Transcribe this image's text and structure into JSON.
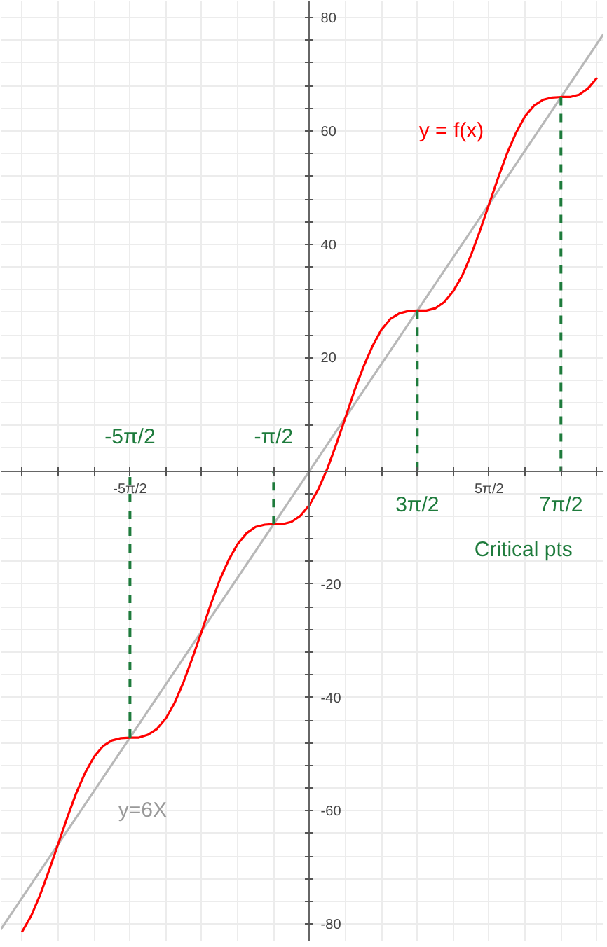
{
  "chart_data": {
    "type": "line",
    "xlim": [
      -13.5,
      12.85
    ],
    "ylim": [
      -83.2,
      83
    ],
    "xticks": [
      {
        "value": -12.57,
        "label": null
      },
      {
        "value": -10.99,
        "label": null
      },
      {
        "value": -9.42,
        "label": null
      },
      {
        "value": -7.85,
        "label": "-5π/2"
      },
      {
        "value": -6.28,
        "label": null
      },
      {
        "value": -4.71,
        "label": null
      },
      {
        "value": -3.14,
        "label": null
      },
      {
        "value": -1.57,
        "label": null
      },
      {
        "value": 0,
        "label": null
      },
      {
        "value": 1.57,
        "label": null
      },
      {
        "value": 3.14,
        "label": null
      },
      {
        "value": 4.71,
        "label": null
      },
      {
        "value": 6.28,
        "label": null
      },
      {
        "value": 7.85,
        "label": "5π/2"
      },
      {
        "value": 9.42,
        "label": null
      },
      {
        "value": 10.99,
        "label": null
      },
      {
        "value": 12.57,
        "label": null
      }
    ],
    "yticks": [
      -80,
      {
        "value": -76,
        "label": null
      },
      {
        "value": -72,
        "label": null
      },
      {
        "value": -68,
        "label": null
      },
      {
        "value": -64,
        "label": null
      },
      -60,
      {
        "value": -56,
        "label": null
      },
      {
        "value": -52,
        "label": null
      },
      {
        "value": -48,
        "label": null
      },
      {
        "value": -44,
        "label": null
      },
      -40,
      {
        "value": -36,
        "label": null
      },
      {
        "value": -32,
        "label": null
      },
      {
        "value": -28,
        "label": null
      },
      {
        "value": -24,
        "label": null
      },
      -20,
      {
        "value": -16,
        "label": null
      },
      {
        "value": -12,
        "label": null
      },
      {
        "value": -8,
        "label": null
      },
      {
        "value": -4,
        "label": null
      },
      {
        "value": 0,
        "label": null
      },
      {
        "value": 4,
        "label": null
      },
      {
        "value": 8,
        "label": null
      },
      {
        "value": 12,
        "label": null
      },
      {
        "value": 16,
        "label": null
      },
      20,
      {
        "value": 24,
        "label": null
      },
      {
        "value": 28,
        "label": null
      },
      {
        "value": 32,
        "label": null
      },
      {
        "value": 36,
        "label": null
      },
      40,
      {
        "value": 44,
        "label": null
      },
      {
        "value": 48,
        "label": null
      },
      {
        "value": 52,
        "label": null
      },
      {
        "value": 56,
        "label": null
      },
      60,
      {
        "value": 64,
        "label": null
      },
      {
        "value": 68,
        "label": null
      },
      {
        "value": 72,
        "label": null
      },
      {
        "value": 76,
        "label": null
      },
      80
    ],
    "grid": true,
    "marker": "none",
    "series": [
      {
        "color": "#b8b8b8",
        "line_style": "solid",
        "x": [
          -13.5,
          12.85
        ],
        "values": [
          -81.0,
          77.1
        ]
      },
      {
        "color": "#ff0000",
        "line_style": "solid",
        "x": [
          -12.57,
          -12.17,
          -11.78,
          -11.39,
          -11.0,
          -10.6,
          -10.21,
          -9.82,
          -9.42,
          -9.03,
          -8.64,
          -8.25,
          -7.85,
          -7.46,
          -7.07,
          -6.68,
          -6.28,
          -5.89,
          -5.5,
          -5.11,
          -4.71,
          -4.32,
          -3.93,
          -3.53,
          -3.14,
          -2.75,
          -2.36,
          -1.96,
          -1.57,
          -1.18,
          -0.79,
          -0.39,
          0,
          0.39,
          0.79,
          1.18,
          1.57,
          1.96,
          2.36,
          2.75,
          3.14,
          3.53,
          3.93,
          4.32,
          4.71,
          5.11,
          5.5,
          5.89,
          6.28,
          6.68,
          7.07,
          7.46,
          7.85,
          8.25,
          8.64,
          9.03,
          9.42,
          9.82,
          10.21,
          10.6,
          11.0,
          11.39,
          11.78,
          12.17,
          12.57
        ],
        "values": [
          -81.4,
          -78.6,
          -74.9,
          -70.6,
          -66.0,
          -61.3,
          -57.0,
          -53.4,
          -50.5,
          -48.6,
          -47.6,
          -47.2,
          -47.1,
          -47.1,
          -46.6,
          -45.6,
          -43.7,
          -40.9,
          -37.2,
          -32.9,
          -28.3,
          -23.6,
          -19.3,
          -15.7,
          -12.9,
          -11.0,
          -9.9,
          -9.5,
          -9.4,
          -9.4,
          -9.0,
          -7.9,
          -6.0,
          -3.2,
          0.5,
          4.8,
          9.4,
          14.1,
          18.4,
          22.0,
          24.9,
          26.8,
          27.8,
          28.2,
          28.3,
          28.3,
          28.7,
          29.8,
          31.7,
          34.5,
          38.2,
          42.5,
          47.1,
          51.8,
          56.1,
          59.7,
          62.6,
          64.5,
          65.5,
          65.9,
          66.0,
          66.0,
          66.4,
          67.5,
          69.4
        ]
      },
      {
        "color": "#1e7b3c",
        "line_style": "dashed",
        "x": [
          -7.85,
          -7.85
        ],
        "values": [
          -47.1,
          0
        ]
      },
      {
        "color": "#1e7b3c",
        "line_style": "dashed",
        "x": [
          -1.57,
          -1.57
        ],
        "values": [
          -9.4,
          0
        ]
      },
      {
        "color": "#1e7b3c",
        "line_style": "dashed",
        "x": [
          4.71,
          4.71
        ],
        "values": [
          28.3,
          0
        ]
      },
      {
        "color": "#1e7b3c",
        "line_style": "dashed",
        "x": [
          10.99,
          10.99
        ],
        "values": [
          66.0,
          0
        ]
      }
    ],
    "annotations": [
      "-5π/2",
      "-π/2",
      "3π/2",
      "7π/2",
      "Critical pts",
      "y = f(x)",
      "y=6X"
    ]
  }
}
